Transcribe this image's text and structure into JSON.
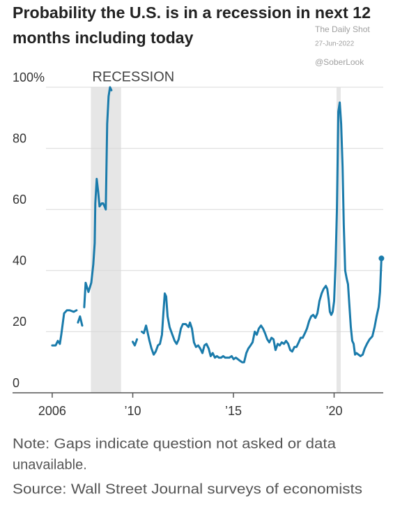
{
  "chart_data": {
    "type": "line",
    "title": [
      "Probability the U.S. is in a recession in next 12",
      "months including today"
    ],
    "watermark": [
      "The Daily Shot",
      "27-Jun-2022",
      "@SoberLook"
    ],
    "recession_label": "RECESSION",
    "recessions": [
      [
        2007.92,
        2009.42
      ],
      [
        2020.12,
        2020.33
      ]
    ],
    "note": [
      "Note: Gaps indicate question not asked or data",
      "unavailable."
    ],
    "source": "Source: Wall Street Journal surveys of economists",
    "color": "#1a7bab",
    "xlim": [
      2004.03,
      2022.44
    ],
    "ylim": [
      0,
      100
    ],
    "xticks": [
      2006,
      {
        "value": 2010,
        "label": "’10"
      },
      {
        "value": 2015,
        "label": "’15"
      },
      {
        "value": 2020,
        "label": "’20"
      }
    ],
    "yticks": [
      0,
      20,
      40,
      60,
      80,
      {
        "value": 100,
        "label": "100%"
      }
    ],
    "grid": true,
    "x": [
      2006.0,
      2006.17,
      2006.28,
      2006.38,
      2006.45,
      2006.59,
      2006.73,
      2006.87,
      2007.07,
      2007.21,
      null,
      2007.28,
      2007.38,
      2007.49,
      null,
      2007.59,
      2007.66,
      2007.8,
      2007.94,
      2008.04,
      2008.11,
      2008.14,
      2008.21,
      2008.28,
      2008.35,
      2008.46,
      2008.53,
      2008.6,
      2008.66,
      2008.7,
      2008.73,
      2008.8,
      2008.87,
      2008.94,
      null,
      2010.0,
      2010.1,
      2010.21,
      null,
      2010.45,
      2010.55,
      2010.66,
      2010.73,
      2010.83,
      2010.93,
      2011.04,
      2011.14,
      2011.25,
      2011.35,
      2011.45,
      2011.52,
      2011.59,
      2011.66,
      2011.73,
      2011.83,
      2011.94,
      2012.08,
      2012.18,
      2012.28,
      2012.39,
      2012.49,
      2012.63,
      2012.77,
      2012.84,
      2012.94,
      2013.04,
      2013.14,
      2013.25,
      2013.35,
      2013.46,
      2013.56,
      2013.66,
      2013.77,
      2013.87,
      2013.97,
      2014.08,
      2014.18,
      2014.28,
      2014.39,
      2014.49,
      2014.59,
      2014.7,
      2014.8,
      2014.91,
      2015.01,
      2015.12,
      2015.22,
      2015.32,
      2015.43,
      2015.53,
      2015.64,
      2015.74,
      2015.85,
      2015.95,
      2016.06,
      2016.16,
      2016.26,
      2016.37,
      2016.47,
      2016.57,
      2016.68,
      2016.78,
      2016.89,
      2016.99,
      2017.09,
      2017.2,
      2017.3,
      2017.4,
      2017.51,
      2017.61,
      2017.72,
      2017.82,
      2017.92,
      2018.03,
      2018.13,
      2018.24,
      2018.34,
      2018.44,
      2018.55,
      2018.65,
      2018.76,
      2018.86,
      2018.96,
      2019.07,
      2019.17,
      2019.27,
      2019.38,
      2019.48,
      2019.59,
      2019.66,
      2019.73,
      2019.79,
      2019.86,
      2019.93,
      2020.0,
      2020.07,
      2020.14,
      2020.21,
      2020.28,
      2020.35,
      2020.42,
      2020.48,
      2020.55,
      2020.62,
      2020.69,
      2020.76,
      2020.83,
      2020.9,
      2020.97,
      2021.04,
      2021.11,
      2021.21,
      2021.31,
      2021.42,
      2021.52,
      2021.63,
      2021.76,
      2021.9,
      2022.01,
      2022.11,
      2022.21,
      2022.28,
      2022.35
    ],
    "values": [
      15.5,
      15.5,
      17,
      16,
      19,
      26,
      27,
      27,
      26.5,
      27,
      null,
      23,
      25,
      22,
      null,
      28,
      36,
      33,
      36,
      42,
      49,
      62,
      70,
      66,
      61,
      62,
      62,
      61,
      60,
      76,
      88,
      97,
      100,
      99,
      null,
      16.7,
      15.5,
      17.5,
      null,
      20,
      19.5,
      22,
      20,
      17,
      14.5,
      12.5,
      13.5,
      15.5,
      16,
      19,
      26,
      32.5,
      31.5,
      25,
      21.5,
      19.5,
      17,
      16,
      17.5,
      21,
      22.5,
      22.5,
      21.5,
      23,
      21,
      16.5,
      15,
      15.5,
      14.5,
      13,
      15.5,
      16,
      14.5,
      12,
      13,
      11.5,
      12,
      11.5,
      11.5,
      12,
      11.5,
      11.5,
      11.5,
      12,
      11,
      11.5,
      11,
      10.5,
      10,
      10,
      13,
      14.5,
      15.5,
      16.5,
      20,
      19,
      21,
      22,
      21,
      19.5,
      17.5,
      16.5,
      18,
      17.5,
      14,
      16,
      15.5,
      16.5,
      16,
      17,
      16,
      14,
      13.5,
      15,
      15,
      16.5,
      18,
      18,
      19.5,
      21,
      23.5,
      25,
      25.5,
      24.5,
      26,
      30,
      32.5,
      34,
      35,
      34,
      30.5,
      26.5,
      25.5,
      26.5,
      30,
      42,
      60,
      92,
      95,
      88,
      74,
      55,
      40,
      37.5,
      35.5,
      28.5,
      21.5,
      17,
      16,
      12.5,
      13,
      12.5,
      12,
      12.5,
      14.5,
      16,
      17.5,
      18.5,
      21.5,
      25,
      28,
      33,
      44
    ]
  }
}
